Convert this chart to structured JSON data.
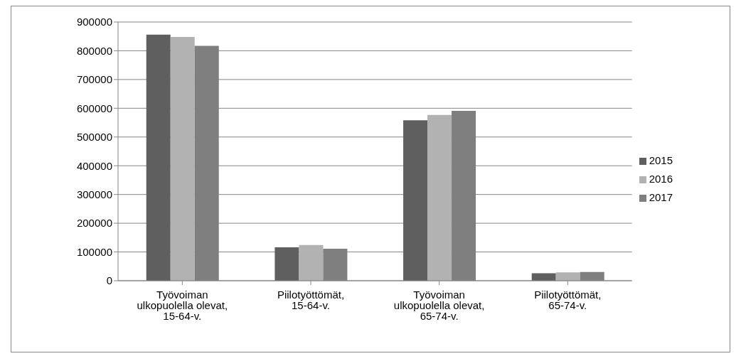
{
  "chart_data": {
    "type": "bar",
    "categories": [
      "Työvoiman ulkopuolella olevat, 15-64-v.",
      "Piilotyöttömät, 15-64-v.",
      "Työvoiman ulkopuolella olevat, 65-74-v.",
      "Piilotyöttömät, 65-74-v."
    ],
    "series": [
      {
        "name": "2015",
        "color": "#5f5f5f",
        "values": [
          856000,
          116000,
          558000,
          26000
        ]
      },
      {
        "name": "2016",
        "color": "#b2b2b2",
        "values": [
          848000,
          124000,
          577000,
          29000
        ]
      },
      {
        "name": "2017",
        "color": "#7f7f7f",
        "values": [
          817000,
          111000,
          591000,
          30000
        ]
      }
    ],
    "ylim": [
      0,
      900000
    ],
    "yticks": [
      0,
      100000,
      200000,
      300000,
      400000,
      500000,
      600000,
      700000,
      800000,
      900000
    ],
    "grid": "y",
    "legend": "right"
  }
}
